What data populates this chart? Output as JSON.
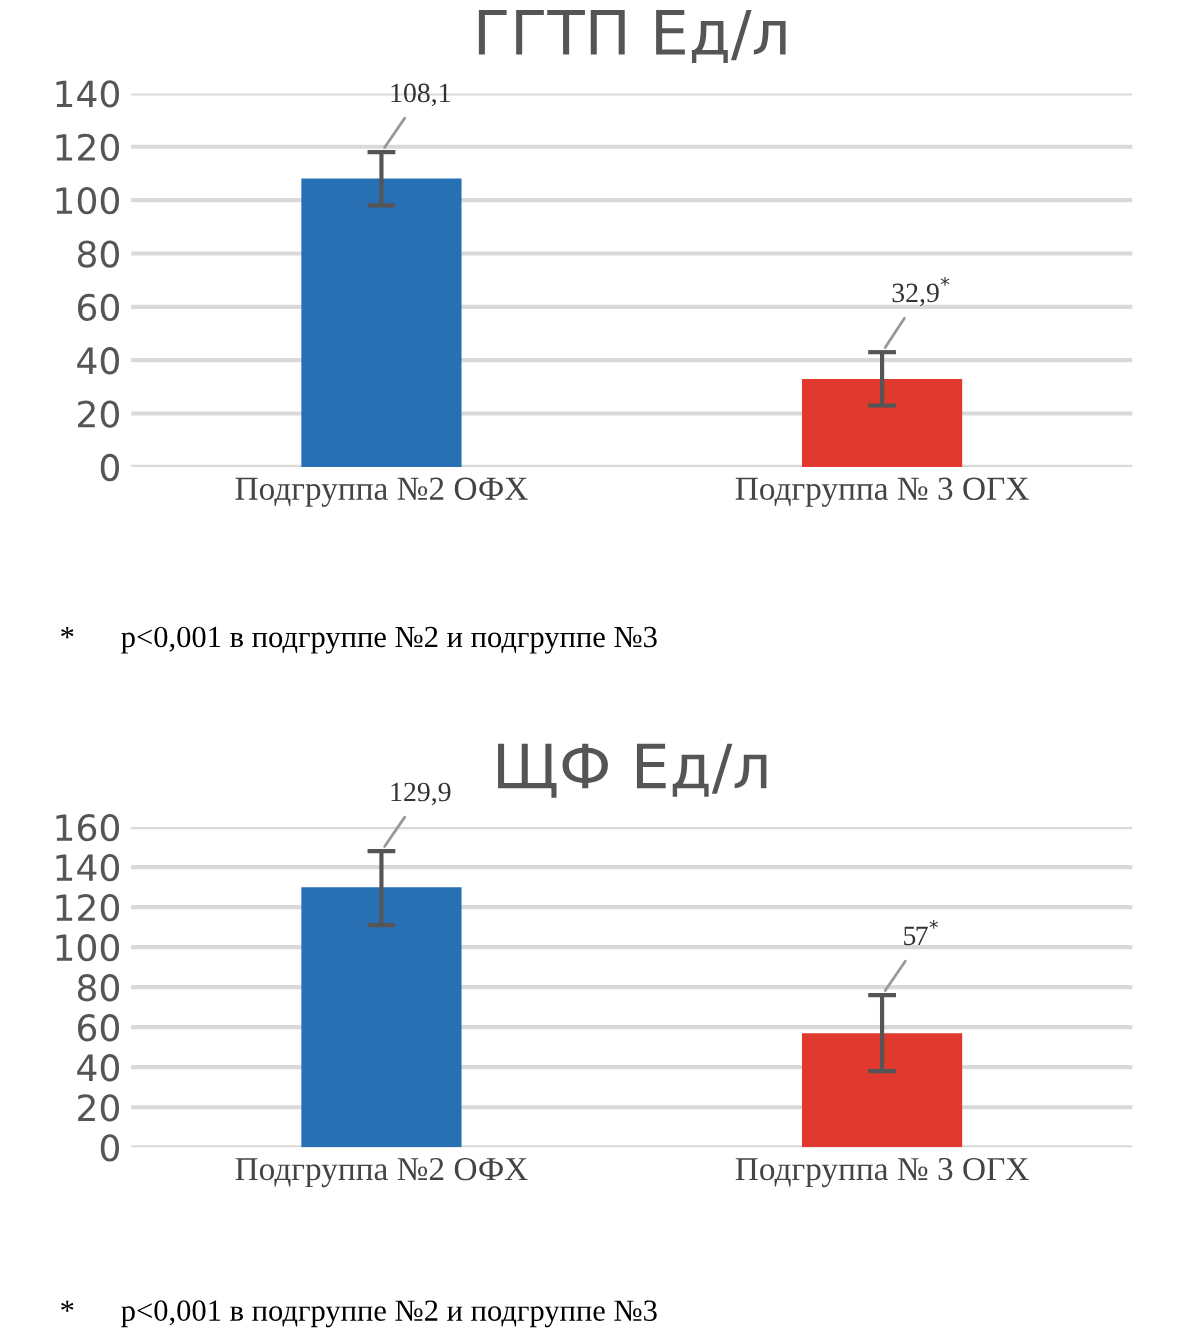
{
  "chart_data": [
    {
      "type": "bar",
      "title": "ГГТП Ед/л",
      "categories": [
        "Подгруппа №2 ОФХ",
        "Подгруппа № 3 ОГХ"
      ],
      "values": [
        108.1,
        32.9
      ],
      "colors": [
        "#2870b4",
        "#e03a30"
      ],
      "errors": [
        [
          98,
          118
        ],
        [
          23,
          43
        ]
      ],
      "value_labels": [
        "108,1",
        "32,9$^{*}$"
      ],
      "ylim": [
        0,
        140
      ],
      "yticks": [
        0,
        20,
        40,
        60,
        80,
        100,
        120,
        140
      ],
      "grid": "y",
      "annotations": [
        "*      p<0,001 в подгруппе №2 и подгруппе №3"
      ]
    },
    {
      "type": "bar",
      "title": "ЩФ Ед/л",
      "categories": [
        "Подгруппа №2 ОФХ",
        "Подгруппа № 3 ОГХ"
      ],
      "values": [
        129.9,
        57
      ],
      "colors": [
        "#2870b4",
        "#e03a30"
      ],
      "errors": [
        [
          111,
          148
        ],
        [
          38,
          76
        ]
      ],
      "value_labels": [
        "129,9",
        "57$^{*}$"
      ],
      "ylim": [
        0,
        160
      ],
      "yticks": [
        0,
        20,
        40,
        60,
        80,
        100,
        120,
        140,
        160
      ],
      "grid": "y",
      "annotations": [
        "*      p<0,001 в подгруппе №2 и подгруппе №3"
      ]
    }
  ]
}
